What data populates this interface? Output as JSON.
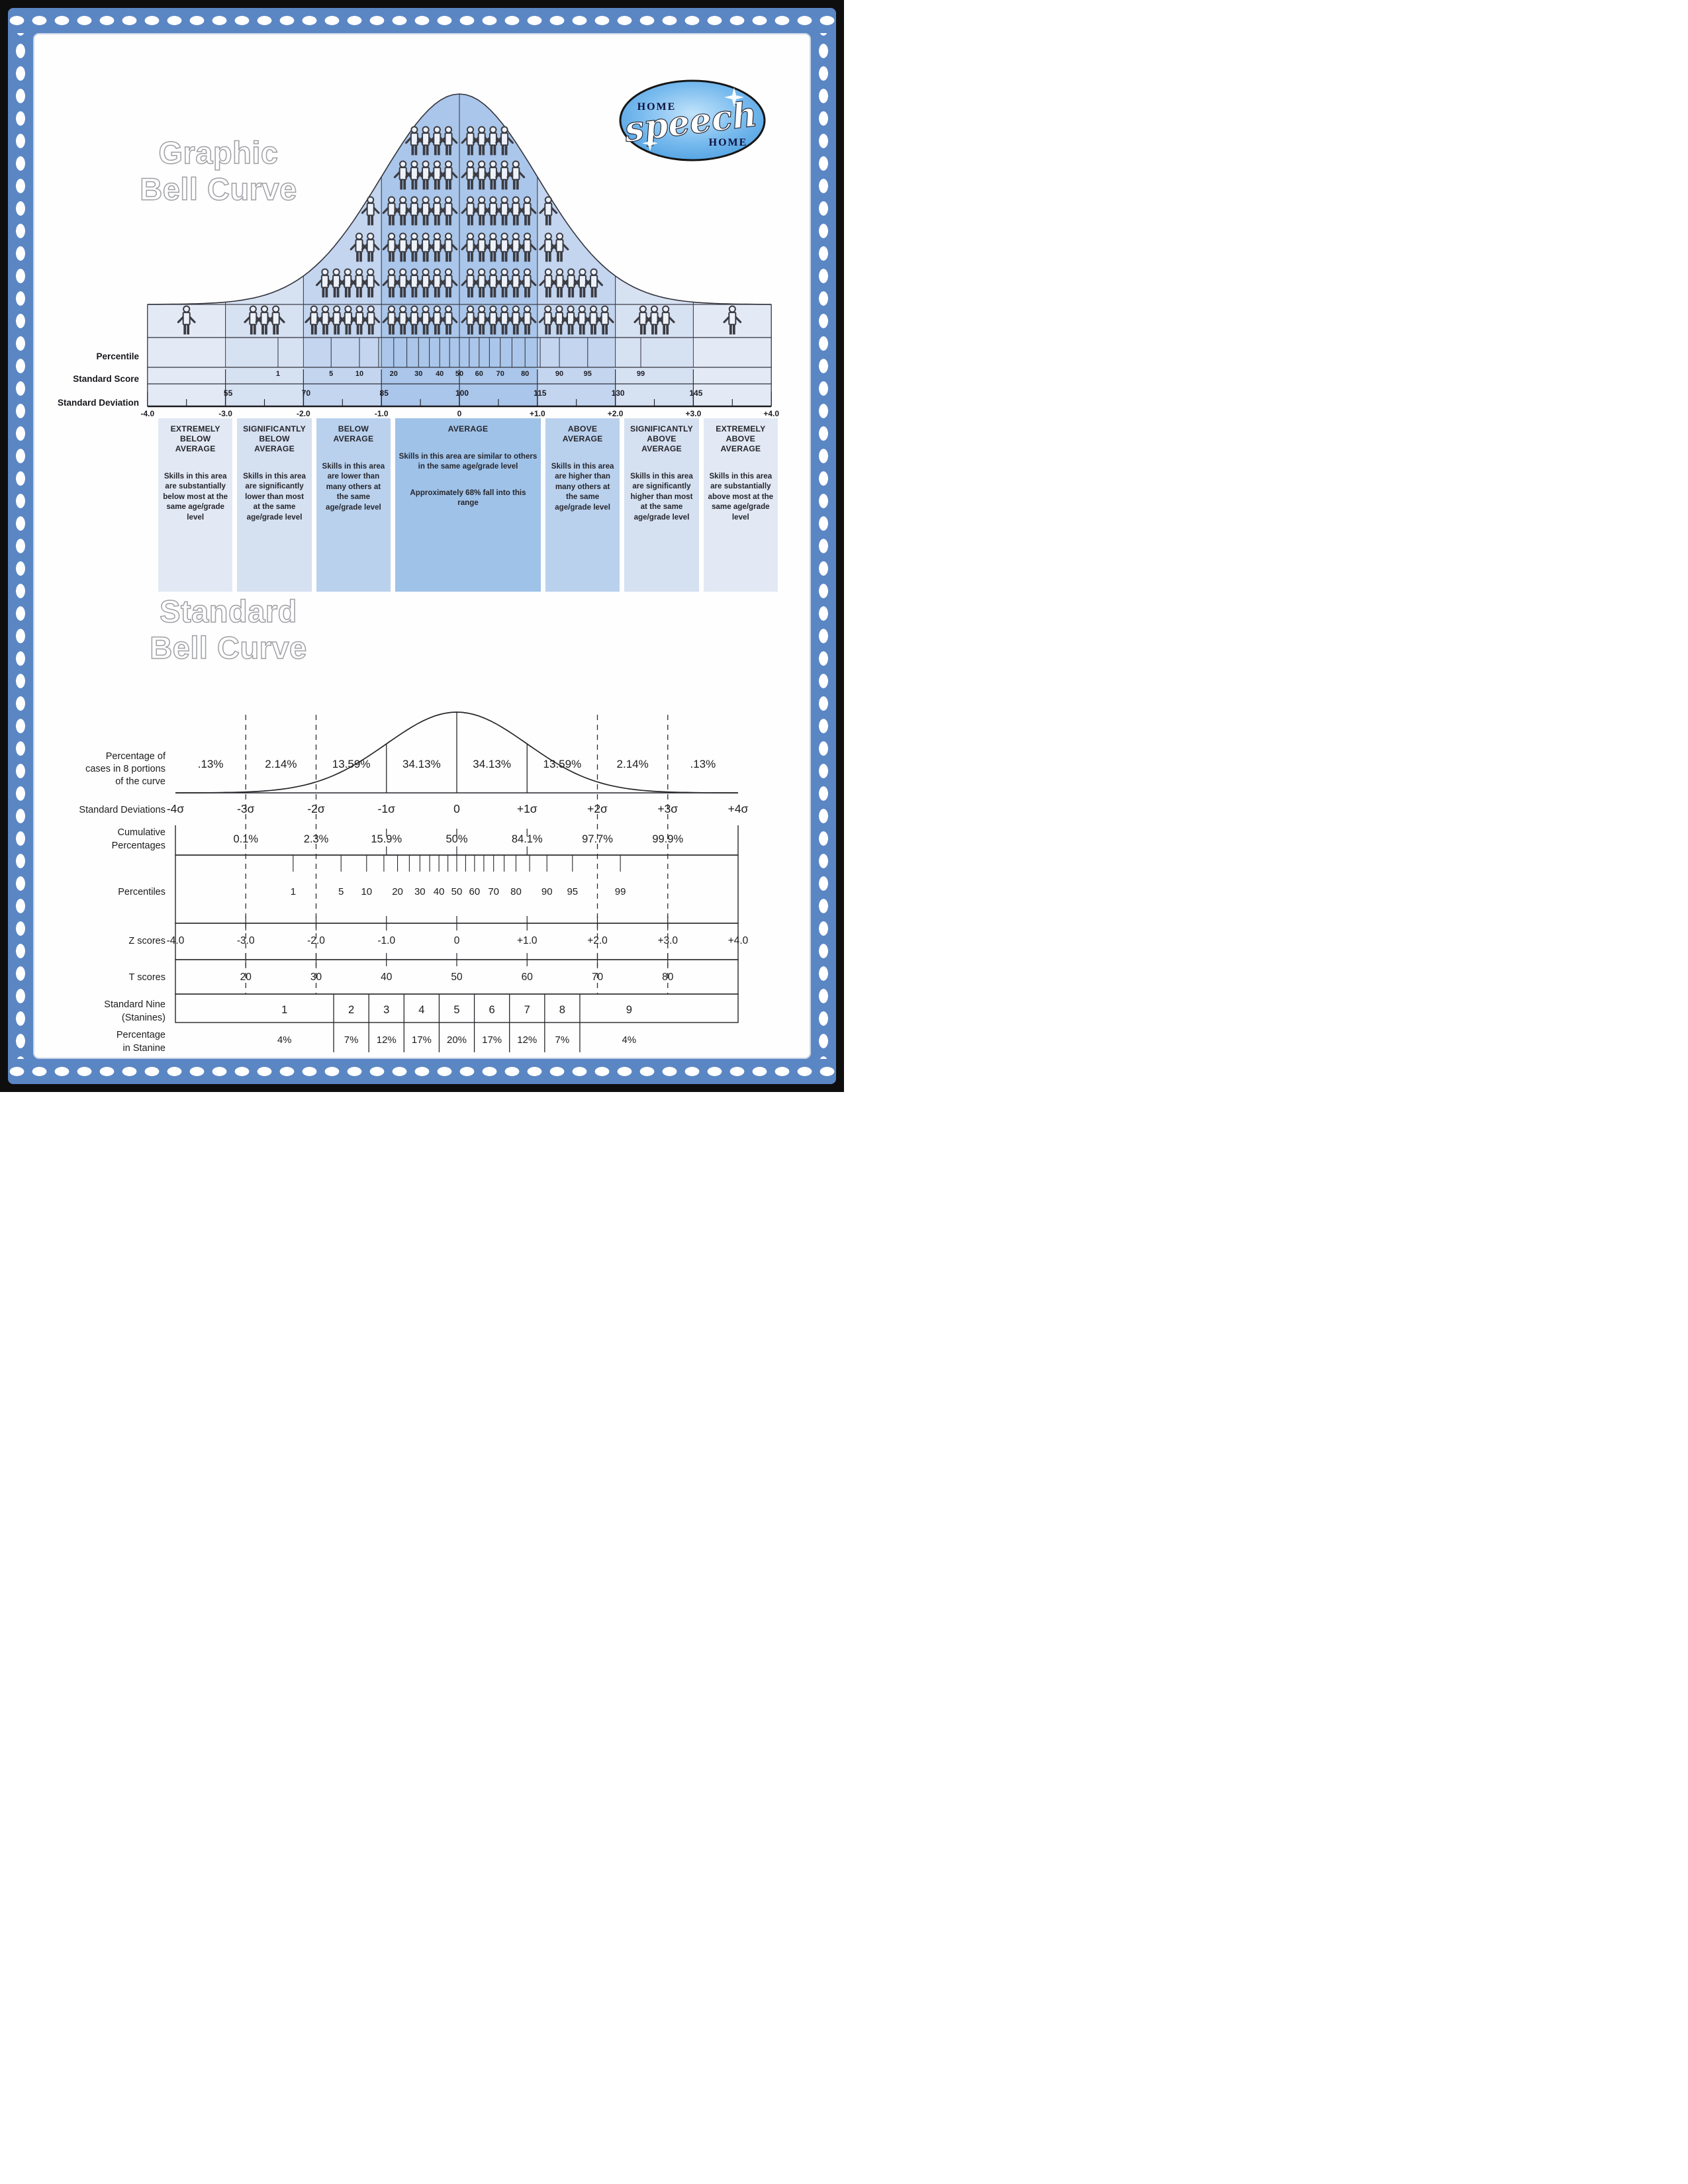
{
  "page": {
    "border_color": "#5b86c4",
    "frame_color": "#0e0e0e"
  },
  "logo": {
    "word_top": "HOME",
    "word_script": "speech",
    "word_bottom": "HOME"
  },
  "titles": {
    "graphic": [
      "Graphic",
      "Bell Curve"
    ],
    "standard": [
      "Standard",
      "Bell Curve"
    ]
  },
  "category_boxes": [
    {
      "title": "EXTREMELY BELOW AVERAGE",
      "body": "Skills in this area are substantially below most at the same age/grade level",
      "color": "#e2e9f4"
    },
    {
      "title": "SIGNIFICANTLY BELOW AVERAGE",
      "body": "Skills in this area are significantly lower than most at the same age/grade level",
      "color": "#d5e0f1"
    },
    {
      "title": "BELOW AVERAGE",
      "body": "Skills in this area are lower than many others at the same age/grade level",
      "color": "#b9d1ed"
    },
    {
      "title": "AVERAGE",
      "body": "Skills in this area are similar to others in the same age/grade level",
      "body2": "Approximately 68% fall into this range",
      "color": "#9fc2e8"
    },
    {
      "title": "ABOVE AVERAGE",
      "body": "Skills in this area are higher than many others at the same age/grade level",
      "color": "#b9d1ed"
    },
    {
      "title": "SIGNIFICANTLY ABOVE AVERAGE",
      "body": "Skills in this area are significantly higher than most at the same age/grade level",
      "color": "#d5e0f1"
    },
    {
      "title": "EXTREMELY ABOVE AVERAGE",
      "body": "Skills in this area are substantially above most at the same age/grade level",
      "color": "#e2e9f4"
    }
  ],
  "chart_data": [
    {
      "type": "area",
      "title": "Graphic Bell Curve",
      "sigma_range": [
        -4,
        4
      ],
      "band_colors": [
        "#e3eaf6",
        "#d6e1f2",
        "#c3d5ef",
        "#aac6ea",
        "#aac6ea",
        "#c3d5ef",
        "#d6e1f2",
        "#e3eaf6"
      ],
      "people_bands": [
        {
          "band": 0,
          "rows": [
            [
              "strip",
              1,
              "c"
            ]
          ]
        },
        {
          "band": 1,
          "rows": [
            [
              "strip",
              3,
              "c"
            ]
          ]
        },
        {
          "band": 2,
          "rows": [
            [
              "r3",
              1,
              "r"
            ],
            [
              "r4",
              2,
              "r"
            ],
            [
              "r5",
              5,
              "r"
            ],
            [
              "strip",
              6,
              "c"
            ]
          ]
        },
        {
          "band": 3,
          "rows": [
            [
              "r1",
              4,
              "r"
            ],
            [
              "r2",
              5,
              "r"
            ],
            [
              "r3",
              6,
              "r"
            ],
            [
              "r4",
              6,
              "r"
            ],
            [
              "r5",
              6,
              "r"
            ],
            [
              "strip",
              6,
              "r"
            ]
          ]
        },
        {
          "band": 4,
          "rows": [
            [
              "r1",
              4,
              "l"
            ],
            [
              "r2",
              5,
              "l"
            ],
            [
              "r3",
              6,
              "l"
            ],
            [
              "r4",
              6,
              "l"
            ],
            [
              "r5",
              6,
              "l"
            ],
            [
              "strip",
              6,
              "l"
            ]
          ]
        },
        {
          "band": 5,
          "rows": [
            [
              "r3",
              1,
              "l"
            ],
            [
              "r4",
              2,
              "l"
            ],
            [
              "r5",
              5,
              "l"
            ],
            [
              "strip",
              6,
              "c"
            ]
          ]
        },
        {
          "band": 6,
          "rows": [
            [
              "strip",
              3,
              "c"
            ]
          ]
        },
        {
          "band": 7,
          "rows": [
            [
              "strip",
              1,
              "c"
            ]
          ]
        }
      ],
      "axes": {
        "percentile": {
          "label": "Percentile",
          "ticks": [
            [
              "1",
              -2.326
            ],
            [
              "5",
              -1.645
            ],
            [
              "10",
              -1.282
            ],
            [
              "",
              -1.036
            ],
            [
              "20",
              -0.842
            ],
            [
              "",
              -0.674
            ],
            [
              "30",
              -0.524
            ],
            [
              "",
              -0.385
            ],
            [
              "40",
              -0.253
            ],
            [
              "",
              -0.126
            ],
            [
              "50",
              0
            ],
            [
              "",
              0.126
            ],
            [
              "60",
              0.253
            ],
            [
              "",
              0.385
            ],
            [
              "70",
              0.524
            ],
            [
              "",
              0.674
            ],
            [
              "80",
              0.842
            ],
            [
              "",
              1.036
            ],
            [
              "90",
              1.282
            ],
            [
              "95",
              1.645
            ],
            [
              "99",
              2.326
            ]
          ]
        },
        "standard_score": {
          "label": "Standard Score",
          "ticks": [
            [
              "55",
              -3
            ],
            [
              "70",
              -2
            ],
            [
              "85",
              -1
            ],
            [
              "100",
              0
            ],
            [
              "115",
              1
            ],
            [
              "130",
              2
            ],
            [
              "145",
              3
            ]
          ]
        },
        "standard_deviation": {
          "label": "Standard Deviation",
          "ticks": [
            [
              "-4.0",
              -4
            ],
            [
              "",
              -3.5
            ],
            [
              "-3.0",
              -3
            ],
            [
              "",
              -2.5
            ],
            [
              "-2.0",
              -2
            ],
            [
              "",
              -1.5
            ],
            [
              "-1.0",
              -1
            ],
            [
              "",
              -0.5
            ],
            [
              "0",
              0
            ],
            [
              "",
              0.5
            ],
            [
              "+1.0",
              1
            ],
            [
              "",
              1.5
            ],
            [
              "+2.0",
              2
            ],
            [
              "",
              2.5
            ],
            [
              "+3.0",
              3
            ],
            [
              "",
              3.5
            ],
            [
              "+4.0",
              4
            ]
          ]
        }
      }
    },
    {
      "type": "line",
      "title": "Standard Bell Curve",
      "rows": {
        "portions": {
          "label": [
            "Percentage of",
            "cases in 8 portions",
            "of the curve"
          ],
          "values": [
            [
              ".13%",
              -3.5
            ],
            [
              "2.14%",
              -2.5
            ],
            [
              "13.59%",
              -1.5
            ],
            [
              "34.13%",
              -0.5
            ],
            [
              "34.13%",
              0.5
            ],
            [
              "13.59%",
              1.5
            ],
            [
              "2.14%",
              2.5
            ],
            [
              ".13%",
              3.5
            ]
          ]
        },
        "standard_deviations": {
          "label": [
            "Standard Deviations"
          ],
          "values": [
            [
              "-4σ",
              -4
            ],
            [
              "-3σ",
              -3
            ],
            [
              "-2σ",
              -2
            ],
            [
              "-1σ",
              -1
            ],
            [
              "0",
              0
            ],
            [
              "+1σ",
              1
            ],
            [
              "+2σ",
              2
            ],
            [
              "+3σ",
              3
            ],
            [
              "+4σ",
              4
            ]
          ]
        },
        "cumulative": {
          "label": [
            "Cumulative",
            "Percentages"
          ],
          "values": [
            [
              "0.1%",
              -3
            ],
            [
              "2.3%",
              -2
            ],
            [
              "15.9%",
              -1
            ],
            [
              "50%",
              0
            ],
            [
              "84.1%",
              1
            ],
            [
              "97.7%",
              2
            ],
            [
              "99.9%",
              3
            ]
          ]
        },
        "percentiles": {
          "label": [
            "Percentiles"
          ],
          "ticks": [
            [
              "1",
              -2.326
            ],
            [
              "5",
              -1.645
            ],
            [
              "10",
              -1.282
            ],
            [
              "",
              -1.036
            ],
            [
              "20",
              -0.842
            ],
            [
              "",
              -0.674
            ],
            [
              "30",
              -0.524
            ],
            [
              "",
              -0.385
            ],
            [
              "40",
              -0.253
            ],
            [
              "",
              -0.126
            ],
            [
              "50",
              0
            ],
            [
              "",
              0.126
            ],
            [
              "60",
              0.253
            ],
            [
              "",
              0.385
            ],
            [
              "70",
              0.524
            ],
            [
              "",
              0.674
            ],
            [
              "80",
              0.842
            ],
            [
              "",
              1.036
            ],
            [
              "90",
              1.282
            ],
            [
              "95",
              1.645
            ],
            [
              "99",
              2.326
            ]
          ]
        },
        "z_scores": {
          "label": [
            "Z scores"
          ],
          "values": [
            [
              "-4.0",
              -4
            ],
            [
              "-3.0",
              -3
            ],
            [
              "-2.0",
              -2
            ],
            [
              "-1.0",
              -1
            ],
            [
              "0",
              0
            ],
            [
              "+1.0",
              1
            ],
            [
              "+2.0",
              2
            ],
            [
              "+3.0",
              3
            ],
            [
              "+4.0",
              4
            ]
          ]
        },
        "t_scores": {
          "label": [
            "T scores"
          ],
          "values": [
            [
              "20",
              -3
            ],
            [
              "30",
              -2
            ],
            [
              "40",
              -1
            ],
            [
              "50",
              0
            ],
            [
              "60",
              1
            ],
            [
              "70",
              2
            ],
            [
              "80",
              3
            ]
          ]
        },
        "stanines": {
          "label": [
            "Standard Nine",
            "(Stanines)"
          ],
          "bounds": [
            -1.75,
            -1.25,
            -0.75,
            -0.25,
            0.25,
            0.75,
            1.25,
            1.75
          ],
          "cells": [
            [
              "1",
              -2.45
            ],
            [
              "2",
              -1.5
            ],
            [
              "3",
              -1.0
            ],
            [
              "4",
              -0.5
            ],
            [
              "5",
              0
            ],
            [
              "6",
              0.5
            ],
            [
              "7",
              1.0
            ],
            [
              "8",
              1.5
            ],
            [
              "9",
              2.45
            ]
          ]
        },
        "stanine_pct": {
          "label": [
            "Percentage",
            "in Stanine"
          ],
          "values": [
            [
              "4%",
              -2.45
            ],
            [
              "7%",
              -1.5
            ],
            [
              "12%",
              -1.0
            ],
            [
              "17%",
              -0.5
            ],
            [
              "20%",
              0
            ],
            [
              "17%",
              0.5
            ],
            [
              "12%",
              1.0
            ],
            [
              "7%",
              1.5
            ],
            [
              "4%",
              2.45
            ]
          ]
        }
      }
    }
  ]
}
